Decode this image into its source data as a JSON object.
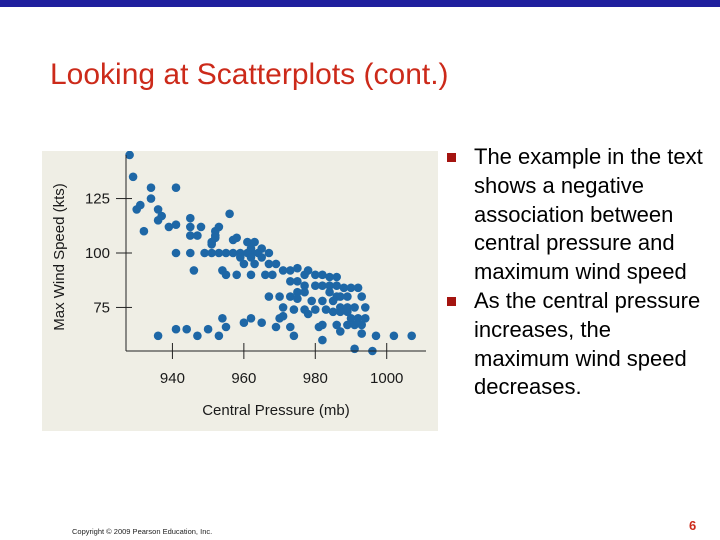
{
  "slide": {
    "title": "Looking at Scatterplots (cont.)",
    "page_number": "6",
    "copyright": "Copyright © 2009 Pearson Education, Inc."
  },
  "bullets": [
    {
      "text": "The example in the text shows a negative association between central pressure and maximum wind speed"
    },
    {
      "text": "As the central pressure increases, the maximum wind speed decreases."
    }
  ],
  "colors": {
    "title": "#cc2a1a",
    "top_rule": "#1f1f9e",
    "bullet_marker": "#a41410",
    "point": "#1e67a6",
    "panel": "#efeee5"
  },
  "chart_data": {
    "type": "scatter",
    "title": "",
    "xlabel": "Central Pressure (mb)",
    "ylabel": "Max Wind Speed (kts)",
    "xlim": [
      927,
      1011
    ],
    "ylim": [
      55,
      145
    ],
    "xticks": [
      940,
      960,
      980,
      1000
    ],
    "yticks": [
      75,
      100,
      125
    ],
    "grid": false,
    "points": [
      [
        928,
        145
      ],
      [
        929,
        135
      ],
      [
        934,
        130
      ],
      [
        930,
        120
      ],
      [
        931,
        122
      ],
      [
        934,
        125
      ],
      [
        936,
        120
      ],
      [
        936,
        115
      ],
      [
        937,
        117
      ],
      [
        941,
        130
      ],
      [
        932,
        110
      ],
      [
        939,
        112
      ],
      [
        941,
        113
      ],
      [
        945,
        116
      ],
      [
        945,
        112
      ],
      [
        945,
        108
      ],
      [
        947,
        108
      ],
      [
        948,
        112
      ],
      [
        952,
        110
      ],
      [
        953,
        112
      ],
      [
        956,
        118
      ],
      [
        951,
        105
      ],
      [
        951,
        104
      ],
      [
        952,
        108
      ],
      [
        952,
        107
      ],
      [
        957,
        106
      ],
      [
        958,
        107
      ],
      [
        961,
        105
      ],
      [
        963,
        105
      ],
      [
        962,
        102
      ],
      [
        962,
        100
      ],
      [
        965,
        102
      ],
      [
        941,
        100
      ],
      [
        945,
        100
      ],
      [
        949,
        100
      ],
      [
        951,
        100
      ],
      [
        953,
        100
      ],
      [
        955,
        100
      ],
      [
        957,
        100
      ],
      [
        959,
        100
      ],
      [
        961,
        100
      ],
      [
        964,
        100
      ],
      [
        967,
        100
      ],
      [
        959,
        98
      ],
      [
        962,
        98
      ],
      [
        965,
        98
      ],
      [
        960,
        95
      ],
      [
        963,
        95
      ],
      [
        967,
        95
      ],
      [
        969,
        95
      ],
      [
        946,
        92
      ],
      [
        954,
        92
      ],
      [
        955,
        90
      ],
      [
        958,
        90
      ],
      [
        962,
        90
      ],
      [
        966,
        90
      ],
      [
        968,
        90
      ],
      [
        971,
        92
      ],
      [
        973,
        92
      ],
      [
        975,
        93
      ],
      [
        978,
        92
      ],
      [
        977,
        90
      ],
      [
        980,
        90
      ],
      [
        982,
        90
      ],
      [
        984,
        89
      ],
      [
        986,
        89
      ],
      [
        973,
        87
      ],
      [
        975,
        87
      ],
      [
        977,
        85
      ],
      [
        980,
        85
      ],
      [
        982,
        85
      ],
      [
        984,
        85
      ],
      [
        986,
        85
      ],
      [
        988,
        84
      ],
      [
        990,
        84
      ],
      [
        992,
        84
      ],
      [
        975,
        82
      ],
      [
        977,
        82
      ],
      [
        984,
        82
      ],
      [
        986,
        80
      ],
      [
        987,
        80
      ],
      [
        989,
        80
      ],
      [
        993,
        80
      ],
      [
        967,
        80
      ],
      [
        970,
        80
      ],
      [
        973,
        80
      ],
      [
        975,
        79
      ],
      [
        979,
        78
      ],
      [
        982,
        78
      ],
      [
        985,
        78
      ],
      [
        987,
        75
      ],
      [
        989,
        75
      ],
      [
        991,
        75
      ],
      [
        994,
        75
      ],
      [
        971,
        75
      ],
      [
        974,
        74
      ],
      [
        977,
        74
      ],
      [
        980,
        74
      ],
      [
        983,
        74
      ],
      [
        985,
        73
      ],
      [
        987,
        73
      ],
      [
        989,
        73
      ],
      [
        990,
        70
      ],
      [
        992,
        70
      ],
      [
        994,
        70
      ],
      [
        954,
        70
      ],
      [
        962,
        70
      ],
      [
        970,
        70
      ],
      [
        971,
        71
      ],
      [
        978,
        72
      ],
      [
        960,
        68
      ],
      [
        965,
        68
      ],
      [
        982,
        67
      ],
      [
        986,
        67
      ],
      [
        989,
        67
      ],
      [
        991,
        67
      ],
      [
        993,
        67
      ],
      [
        941,
        65
      ],
      [
        944,
        65
      ],
      [
        950,
        65
      ],
      [
        955,
        66
      ],
      [
        969,
        66
      ],
      [
        973,
        66
      ],
      [
        981,
        66
      ],
      [
        987,
        64
      ],
      [
        993,
        63
      ],
      [
        997,
        62
      ],
      [
        1002,
        62
      ],
      [
        1007,
        62
      ],
      [
        936,
        62
      ],
      [
        947,
        62
      ],
      [
        953,
        62
      ],
      [
        974,
        62
      ],
      [
        982,
        60
      ],
      [
        991,
        56
      ],
      [
        996,
        55
      ]
    ]
  }
}
